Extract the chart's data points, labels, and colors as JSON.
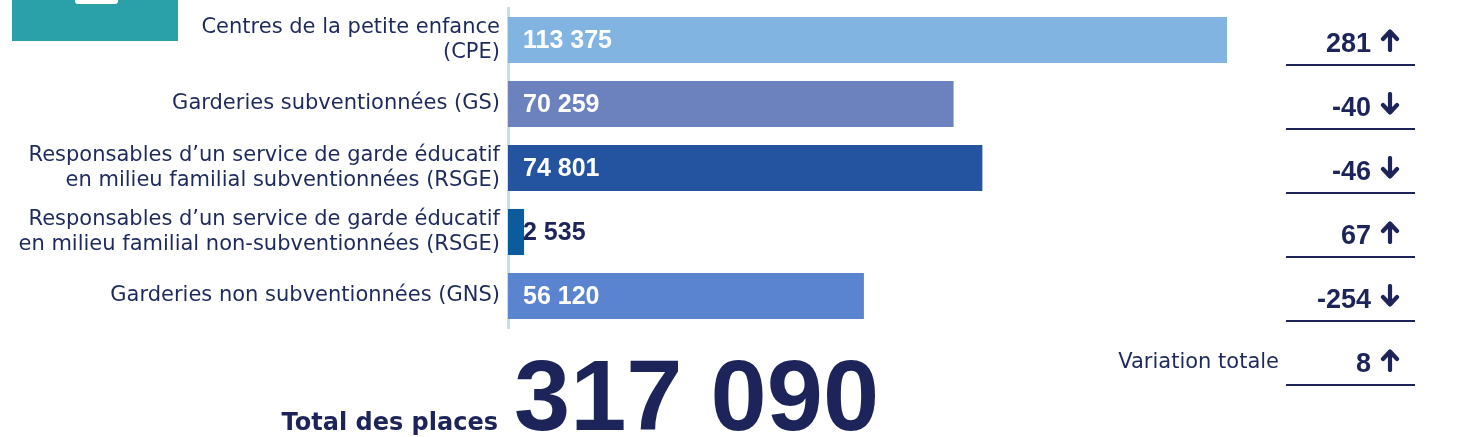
{
  "chart_data": {
    "type": "bar",
    "orientation": "horizontal",
    "categories": [
      "Centres de la petite enfance\n(CPE)",
      "Garderies subventionnées (GS)",
      "Responsables d’un service de garde éducatif\nen milieu familial subventionnées (RSGE)",
      "Responsables d’un service de garde éducatif\nen milieu familial non-subventionnées (RSGE)",
      "Garderies non subventionnées (GNS)"
    ],
    "values": [
      113375,
      70259,
      74801,
      2535,
      56120
    ],
    "colors": [
      "#82b4e2",
      "#6c82bf",
      "#2454a0",
      "#0b5c9e",
      "#5a84cf"
    ],
    "data_labels": true,
    "tick_labels": "y",
    "annotations": [
      "281",
      "-40",
      "-46",
      "67",
      "-254",
      "Variation totale",
      "8",
      "Total des places",
      "317 090"
    ]
  }
}
